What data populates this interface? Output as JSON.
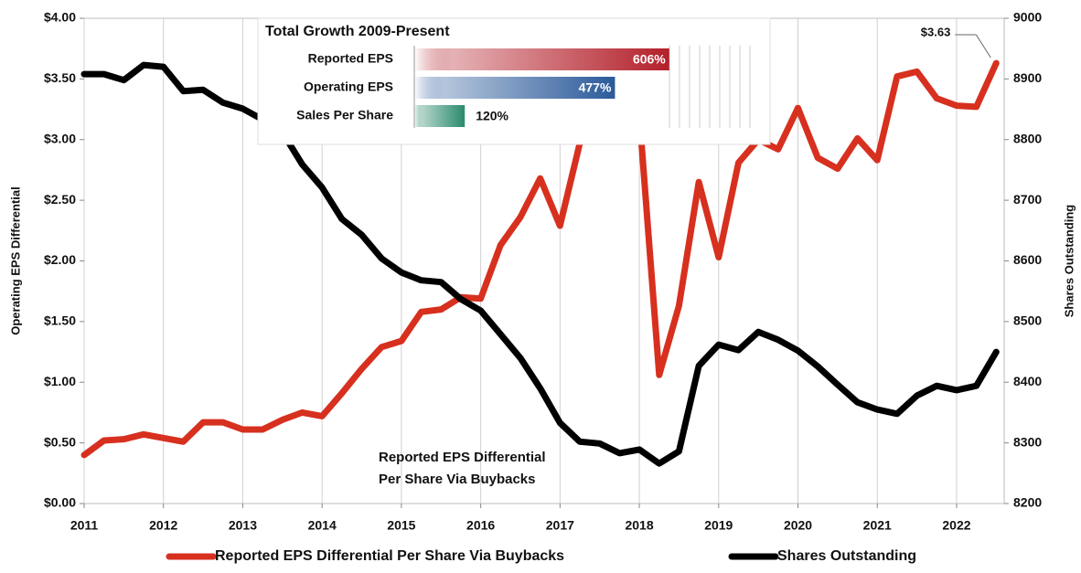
{
  "chart_data": {
    "type": "line",
    "x": [
      2011,
      2011.25,
      2011.5,
      2011.75,
      2012,
      2012.25,
      2012.5,
      2012.75,
      2013,
      2013.25,
      2013.5,
      2013.75,
      2014,
      2014.25,
      2014.5,
      2014.75,
      2015,
      2015.25,
      2015.5,
      2015.75,
      2016,
      2016.25,
      2016.5,
      2016.75,
      2017,
      2017.25,
      2017.5,
      2017.75,
      2018,
      2018.25,
      2018.5,
      2018.75,
      2019,
      2019.25,
      2019.5,
      2019.75,
      2020,
      2020.25,
      2020.5,
      2020.75,
      2021,
      2021.25,
      2021.5,
      2021.75,
      2022,
      2022.25,
      2022.5
    ],
    "series": [
      {
        "name": "Reported EPS Differential Per Share Via Buybacks",
        "color": "#d7301f",
        "values": [
          0.4,
          0.52,
          0.53,
          0.57,
          0.54,
          0.51,
          0.67,
          0.67,
          0.61,
          0.61,
          0.69,
          0.75,
          0.72,
          0.91,
          1.11,
          1.29,
          1.34,
          1.58,
          1.6,
          1.7,
          1.69,
          2.13,
          2.36,
          2.68,
          2.29,
          2.97,
          3.07,
          3.0,
          3.2,
          1.06,
          1.63,
          2.65,
          2.03,
          2.81,
          3.0,
          2.92,
          3.26,
          2.85,
          2.76,
          3.01,
          2.83,
          3.52,
          3.56,
          3.34,
          3.28,
          3.27,
          3.63
        ]
      },
      {
        "name": "Shares Outstanding",
        "color": "#000000",
        "axis": "y2",
        "values": [
          8908,
          8908,
          8898,
          8923,
          8920,
          8880,
          8882,
          8861,
          8851,
          8833,
          8812,
          8759,
          8721,
          8669,
          8643,
          8604,
          8581,
          8568,
          8565,
          8537,
          8518,
          8479,
          8440,
          8390,
          8333,
          8302,
          8299,
          8283,
          8289,
          8266,
          8286,
          8427,
          8462,
          8453,
          8483,
          8470,
          8452,
          8426,
          8396,
          8367,
          8355,
          8348,
          8378,
          8394,
          8387,
          8394,
          8450
        ]
      }
    ],
    "xlim": [
      2011,
      2022.6
    ],
    "xticks": [
      2011,
      2012,
      2013,
      2014,
      2015,
      2016,
      2017,
      2018,
      2019,
      2020,
      2021,
      2022
    ],
    "ylim": [
      0,
      4
    ],
    "yticks": [
      {
        "value": 0,
        "label": "$0.00"
      },
      {
        "value": 0.5,
        "label": "$0.50"
      },
      {
        "value": 1,
        "label": "$1.00"
      },
      {
        "value": 1.5,
        "label": "$1.50"
      },
      {
        "value": 2,
        "label": "$2.00"
      },
      {
        "value": 2.5,
        "label": "$2.50"
      },
      {
        "value": 3,
        "label": "$3.00"
      },
      {
        "value": 3.5,
        "label": "$3.50"
      },
      {
        "value": 4,
        "label": "$4.00"
      }
    ],
    "y2lim": [
      8200,
      9000
    ],
    "y2ticks": [
      8200,
      8300,
      8400,
      8500,
      8600,
      8700,
      8800,
      8900,
      9000
    ],
    "ylabel": "Operating EPS Differential",
    "y2label": "Shares Outstanding",
    "grid": true,
    "annotations": [
      {
        "text": "$3.63",
        "series": 0,
        "index": 46
      },
      {
        "lines": [
          "Reported EPS Differential",
          "Per Share Via Buybacks"
        ]
      }
    ],
    "inset": {
      "type": "bar",
      "title": "Total Growth 2009-Present",
      "categories": [
        "Reported EPS",
        "Operating EPS",
        "Sales Per Share"
      ],
      "values": [
        606,
        477,
        120
      ],
      "value_labels": [
        "606%",
        "477%",
        "120%"
      ],
      "colors": [
        "#b3202a",
        "#2b5a9a",
        "#2a8a6c"
      ]
    }
  }
}
